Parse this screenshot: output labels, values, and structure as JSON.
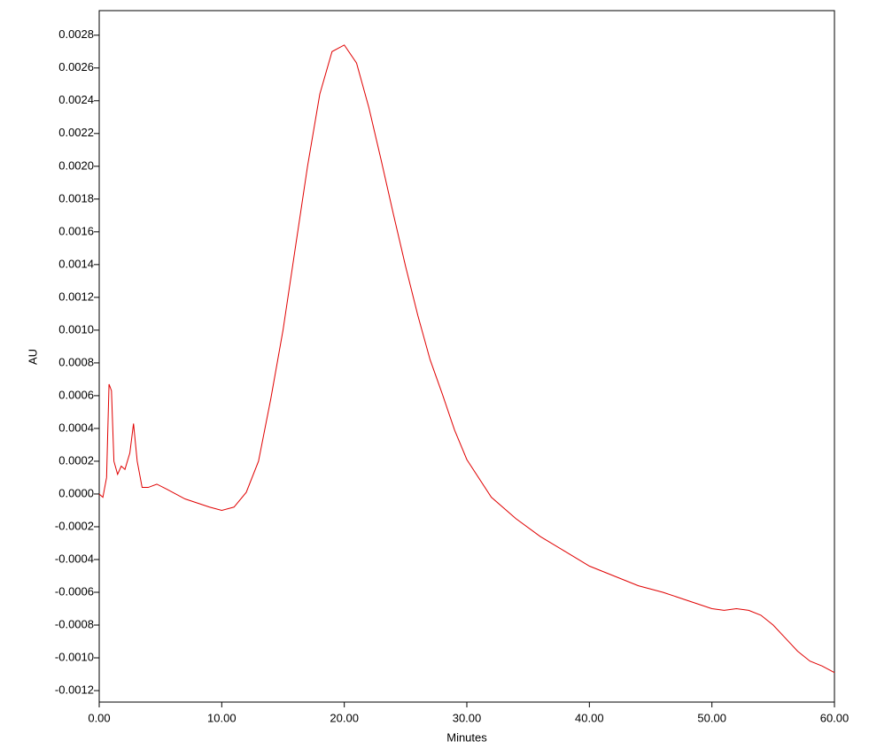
{
  "chart_data": {
    "type": "line",
    "xlabel": "Minutes",
    "ylabel": "AU",
    "xlim": [
      0,
      60
    ],
    "xticks": [
      {
        "value": 0,
        "label": "0.00"
      },
      {
        "value": 10,
        "label": "10.00"
      },
      {
        "value": 20,
        "label": "20.00"
      },
      {
        "value": 30,
        "label": "30.00"
      },
      {
        "value": 40,
        "label": "40.00"
      },
      {
        "value": 50,
        "label": "50.00"
      },
      {
        "value": 60,
        "label": "60.00"
      }
    ],
    "ylim": [
      -0.00127,
      0.00295
    ],
    "yticks": [
      0.0028,
      0.0026,
      0.0024,
      0.0022,
      {
        "value": 0.002,
        "label": "0.0020"
      },
      0.0018,
      0.0016,
      0.0014,
      0.0012,
      {
        "value": 0.001,
        "label": "0.0010"
      },
      0.0008,
      0.0006,
      0.0004,
      0.0002,
      {
        "value": 0,
        "label": "0.0000"
      },
      -0.0002,
      -0.0004,
      -0.0006,
      -0.0008,
      {
        "value": -0.001,
        "label": "-0.0010"
      },
      -0.0012
    ],
    "series": [
      {
        "name": "AU",
        "color": "#e00000",
        "x": [
          0,
          0.3,
          0.6,
          0.8,
          1.0,
          1.2,
          1.5,
          1.8,
          2.1,
          2.5,
          2.8,
          3.1,
          3.5,
          4.0,
          4.7,
          5.5,
          7,
          9,
          10,
          11,
          12,
          13,
          14,
          15,
          16,
          17,
          18,
          19,
          20,
          21,
          22,
          23,
          24,
          25,
          26,
          27,
          28,
          29,
          30,
          32,
          34,
          36,
          38,
          40,
          42,
          44,
          46,
          48,
          50,
          51,
          52,
          53,
          54,
          55,
          56,
          57,
          58,
          59,
          60
        ],
        "values": [
          0,
          -2e-05,
          0.0001,
          0.00067,
          0.00063,
          0.0002,
          0.00012,
          0.00017,
          0.00015,
          0.00025,
          0.00043,
          0.0002,
          4e-05,
          4e-05,
          6e-05,
          3e-05,
          -3e-05,
          -8e-05,
          -0.0001,
          -8e-05,
          1e-05,
          0.0002,
          0.00058,
          0.001,
          0.0015,
          0.002,
          0.00244,
          0.0027,
          0.00274,
          0.00263,
          0.00236,
          0.00204,
          0.00171,
          0.00139,
          0.00109,
          0.00082,
          0.00061,
          0.00039,
          0.00021,
          -2e-05,
          -0.00015,
          -0.00026,
          -0.00035,
          -0.00044,
          -0.0005,
          -0.00056,
          -0.0006,
          -0.00065,
          -0.0007,
          -0.00071,
          -0.0007,
          -0.00071,
          -0.00074,
          -0.0008,
          -0.00088,
          -0.00096,
          -0.00102,
          -0.00105,
          -0.00109
        ]
      }
    ]
  }
}
